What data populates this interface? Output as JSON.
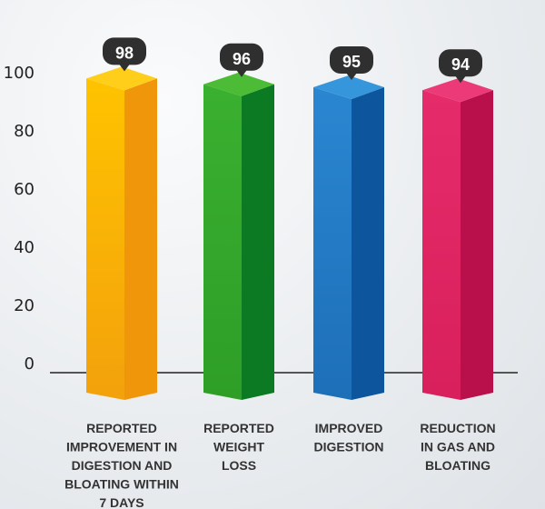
{
  "chart_data": {
    "type": "bar",
    "categories": [
      [
        "REPORTED",
        "IMPROVEMENT IN",
        "DIGESTION AND",
        "BLOATING WITHIN",
        "7 DAYS"
      ],
      [
        "REPORTED",
        "WEIGHT",
        "LOSS"
      ],
      [
        "IMPROVED",
        "DIGESTION"
      ],
      [
        "REDUCTION",
        "IN GAS AND",
        "BLOATING"
      ]
    ],
    "values": [
      98,
      96,
      95,
      94
    ],
    "value_labels": [
      "98",
      "96",
      "95",
      "94"
    ],
    "yticks": [
      "0",
      "20",
      "40",
      "60",
      "80",
      "100"
    ],
    "ylim": [
      0,
      100
    ],
    "title": "",
    "xlabel": "",
    "ylabel": "",
    "grid": false,
    "legend": "none",
    "colors": [
      {
        "front": "#f3a10c",
        "front_light": "#ffc300",
        "side": "#f0960a",
        "top": "#ffce1a"
      },
      {
        "front": "#2e9e27",
        "front_light": "#3ab030",
        "side": "#0b7a22",
        "top": "#4cbb35"
      },
      {
        "front": "#1d6fb8",
        "front_light": "#2b86d1",
        "side": "#0d559c",
        "top": "#3596dc"
      },
      {
        "front": "#d8205c",
        "front_light": "#e62b6a",
        "side": "#b90f4a",
        "top": "#ec3a78"
      }
    ],
    "bubble_color": "#2f2f2f",
    "axis_color": "#555555"
  }
}
